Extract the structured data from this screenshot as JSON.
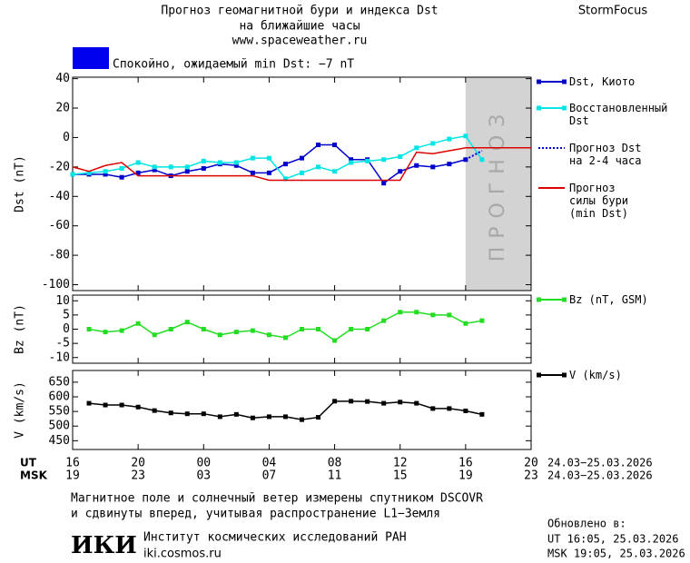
{
  "header": {
    "title": "Прогноз геомагнитной бури и индекса Dst",
    "subtitle": "на ближайшие часы",
    "url": "www.spaceweather.ru",
    "brand": "StormFocus"
  },
  "status": {
    "text": "Спокойно, ожидаемый min Dst: −7 nT",
    "color": "#0000ee"
  },
  "chart_data": [
    {
      "type": "line",
      "ylabel": "Dst (nT)",
      "xlim": [
        0,
        28
      ],
      "ylim": [
        -104,
        41
      ],
      "yticks": [
        40,
        20,
        0,
        -20,
        -40,
        -60,
        -80,
        -100
      ],
      "forecast_region": {
        "x": [
          24,
          28
        ],
        "label": "прогноз",
        "color": "#d3d3d3"
      },
      "series": [
        {
          "name": "Dst, Киото",
          "color": "#0000cc",
          "marker": "square",
          "linestyle": "solid",
          "x": [
            0,
            1,
            2,
            3,
            4,
            5,
            6,
            7,
            8,
            9,
            10,
            11,
            12,
            13,
            14,
            15,
            16,
            17,
            18,
            19,
            20,
            21,
            22,
            23,
            24
          ],
          "values": [
            -25,
            -25,
            -25,
            -27,
            -24,
            -22,
            -26,
            -23,
            -21,
            -18,
            -19,
            -24,
            -24,
            -18,
            -14,
            -5,
            -5,
            -15,
            -15,
            -31,
            -23,
            -19,
            -20,
            -18,
            -15
          ]
        },
        {
          "name": "Восстановленный\nDst",
          "color": "#00e5e5",
          "marker": "square",
          "linestyle": "solid",
          "x": [
            0,
            1,
            2,
            3,
            4,
            5,
            6,
            7,
            8,
            9,
            10,
            11,
            12,
            13,
            14,
            15,
            16,
            17,
            18,
            19,
            20,
            21,
            22,
            23,
            24,
            25
          ],
          "values": [
            -25,
            -24,
            -23,
            -21,
            -17,
            -20,
            -20,
            -20,
            -16,
            -17,
            -17,
            -14,
            -14,
            -28,
            -24,
            -20,
            -23,
            -17,
            -16,
            -15,
            -13,
            -7,
            -4,
            -1,
            1,
            -15
          ]
        },
        {
          "name": "Прогноз Dst\nна 2-4 часа",
          "color": "#0000cc",
          "marker": "none",
          "linestyle": "dotted",
          "x": [
            24,
            25
          ],
          "values": [
            -15,
            -9
          ]
        },
        {
          "name": "Прогноз\nсилы бури\n(min Dst)",
          "color": "#dd0000",
          "marker": "none",
          "linestyle": "solid",
          "x": [
            0,
            1,
            2,
            3,
            4,
            11,
            12,
            20,
            21,
            22,
            23,
            24,
            28
          ],
          "values": [
            -20,
            -23,
            -19,
            -17,
            -26,
            -26,
            -29,
            -29,
            -10,
            -11,
            -9,
            -7,
            -7
          ]
        }
      ]
    },
    {
      "type": "line",
      "ylabel": "Bz (nT)",
      "xlim": [
        0,
        28
      ],
      "ylim": [
        -12,
        12
      ],
      "yticks": [
        10,
        5,
        0,
        -5,
        -10
      ],
      "series": [
        {
          "name": "Bz (nT, GSM)",
          "color": "#22dd22",
          "marker": "square",
          "linestyle": "solid",
          "x": [
            1,
            2,
            3,
            4,
            5,
            6,
            7,
            8,
            9,
            10,
            11,
            12,
            13,
            14,
            15,
            16,
            17,
            18,
            19,
            20,
            21,
            22,
            23,
            24,
            25
          ],
          "values": [
            0,
            -1,
            -0.5,
            2,
            -2,
            0,
            2.5,
            0,
            -2,
            -1,
            -0.5,
            -2,
            -3,
            0,
            0,
            -4,
            0,
            0,
            3,
            6,
            6,
            5,
            5,
            2,
            3
          ]
        }
      ]
    },
    {
      "type": "line",
      "ylabel": "V (km/s)",
      "xlim": [
        0,
        28
      ],
      "ylim": [
        420,
        690
      ],
      "yticks": [
        650,
        600,
        550,
        500,
        450
      ],
      "series": [
        {
          "name": "V (km/s)",
          "color": "#000000",
          "marker": "square",
          "linestyle": "solid",
          "x": [
            1,
            2,
            3,
            4,
            5,
            6,
            7,
            8,
            9,
            10,
            11,
            12,
            13,
            14,
            15,
            16,
            17,
            18,
            19,
            20,
            21,
            22,
            23,
            24,
            25
          ],
          "values": [
            578,
            572,
            572,
            565,
            553,
            545,
            542,
            542,
            532,
            540,
            528,
            532,
            532,
            522,
            530,
            585,
            585,
            584,
            578,
            582,
            578,
            560,
            560,
            552,
            540
          ]
        }
      ],
      "xticks": [
        {
          "value": 0,
          "label": "16"
        },
        {
          "value": 4,
          "label": "20"
        },
        {
          "value": 8,
          "label": "00"
        },
        {
          "value": 12,
          "label": "04"
        },
        {
          "value": 16,
          "label": "08"
        },
        {
          "value": 20,
          "label": "12"
        },
        {
          "value": 24,
          "label": "16"
        },
        {
          "value": 28,
          "label": "20"
        }
      ],
      "msk_ticks": [
        {
          "value": 0,
          "label": "19"
        },
        {
          "value": 4,
          "label": "23"
        },
        {
          "value": 8,
          "label": "03"
        },
        {
          "value": 12,
          "label": "07"
        },
        {
          "value": 16,
          "label": "11"
        },
        {
          "value": 20,
          "label": "15"
        },
        {
          "value": 24,
          "label": "19"
        },
        {
          "value": 28,
          "label": "23"
        }
      ],
      "row_labels": [
        "UT",
        "MSK"
      ],
      "date_ranges": [
        "24.03−25.03.2026",
        "24.03−25.03.2026"
      ]
    }
  ],
  "footer": {
    "note_1": "Магнитное поле и солнечный ветер измерены спутником DSCOVR",
    "note_2": "и сдвинуты вперед, учитывая распространение L1−Земля",
    "logo": "ИКИ",
    "institute": "Институт космических исследований РАН",
    "site": "iki.cosmos.ru",
    "updated": "Обновлено в:",
    "updated_ut": "UT  16:05, 25.03.2026",
    "updated_msk": "MSK 19:05, 25.03.2026"
  }
}
